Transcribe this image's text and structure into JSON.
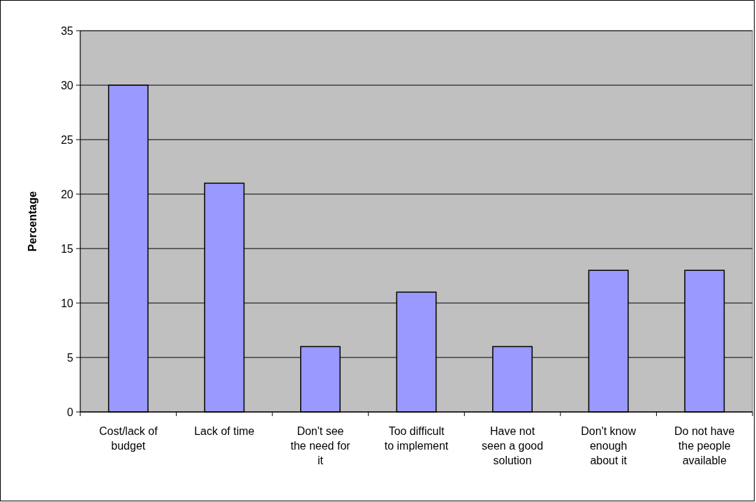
{
  "chart_data": {
    "type": "bar",
    "ylabel": "Percentage",
    "categories": [
      "Cost/lack of budget",
      "Lack of time",
      "Don't see the need for it",
      "Too difficult to implement",
      "Have not seen a good solution",
      "Don't know enough about it",
      "Do not have the people available"
    ],
    "values": [
      30,
      21,
      6,
      11,
      6,
      13,
      13
    ],
    "color": "#9999ff",
    "ylim": [
      0,
      35
    ],
    "yticks": [
      0,
      5,
      10,
      15,
      20,
      25,
      30,
      35
    ],
    "grid": "y"
  }
}
